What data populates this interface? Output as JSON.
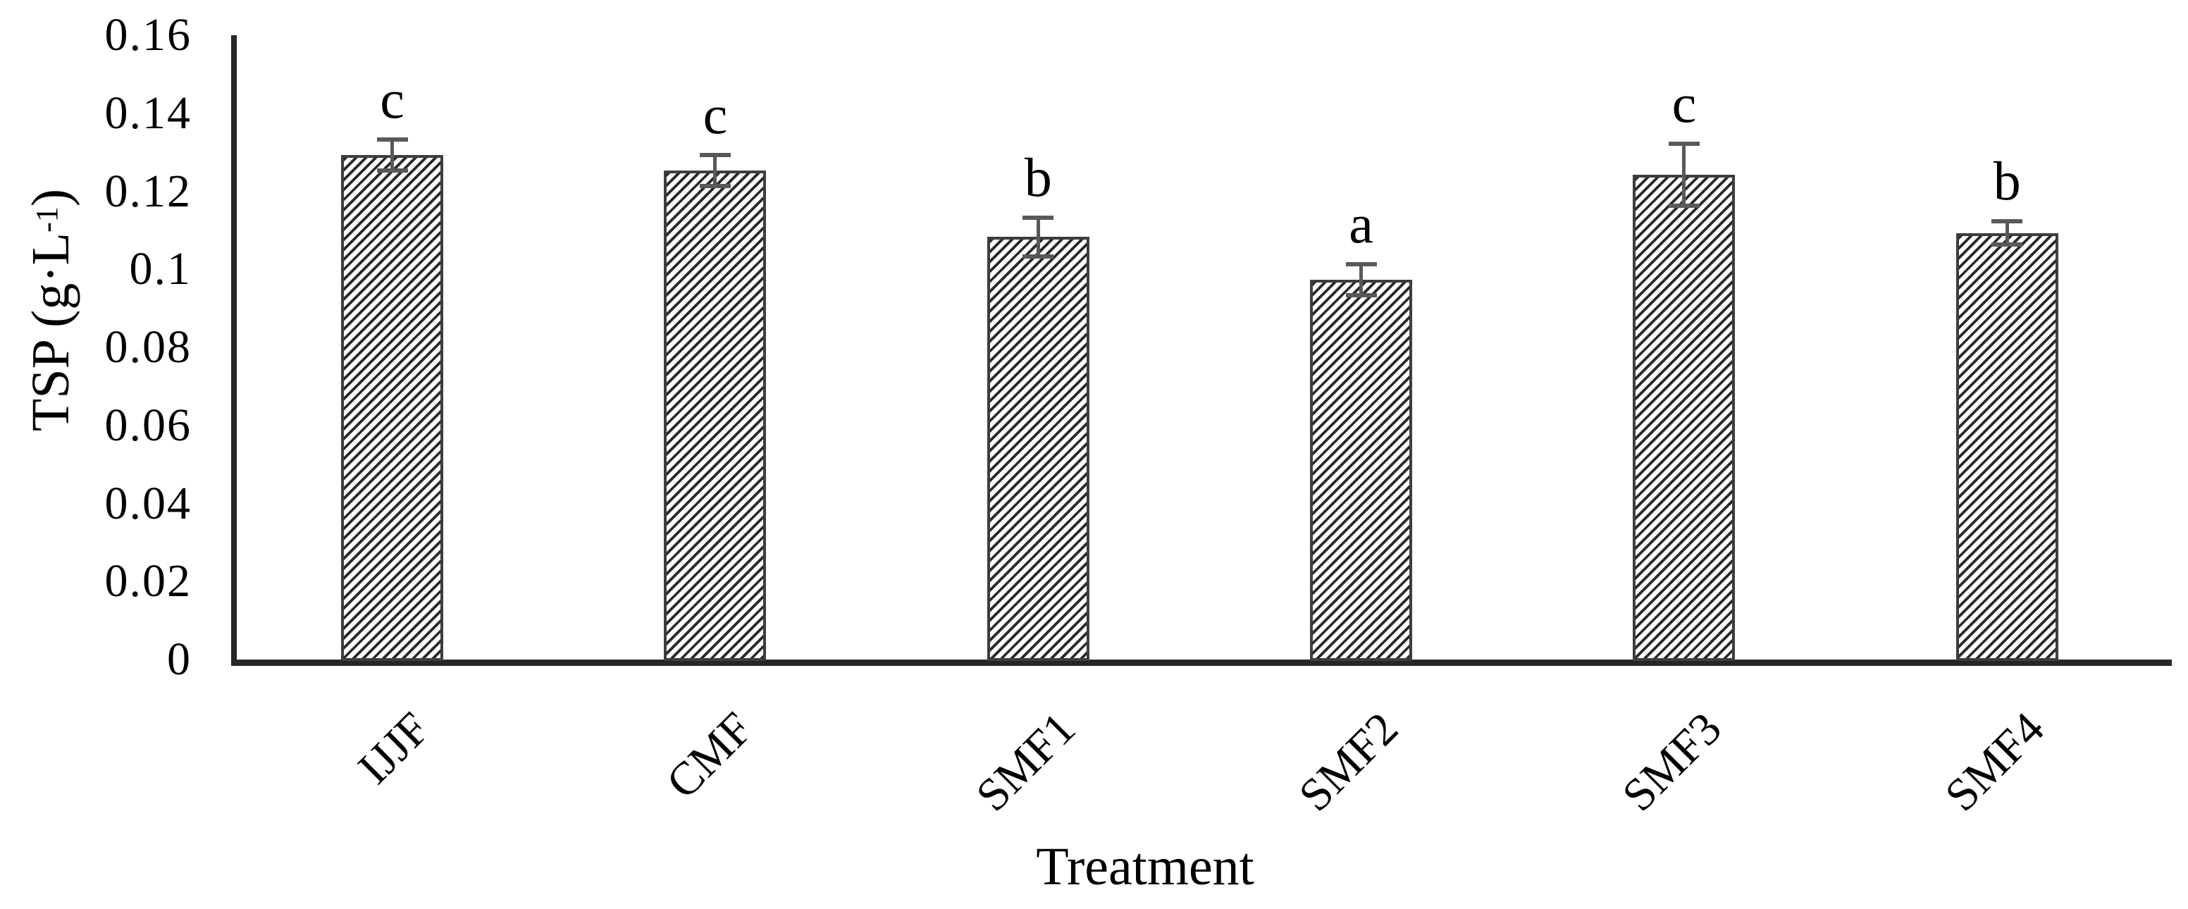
{
  "chart_data": {
    "type": "bar",
    "title": "",
    "xlabel": "Treatment",
    "ylabel": {
      "prefix": "TSP (g·L",
      "sup": "-1",
      "suffix": ")"
    },
    "categories": [
      "IJJF",
      "CMF",
      "SMF1",
      "SMF2",
      "SMF3",
      "SMF4"
    ],
    "values": [
      0.13,
      0.126,
      0.109,
      0.098,
      0.125,
      0.11
    ],
    "error_bars": [
      0.004,
      0.004,
      0.005,
      0.004,
      0.008,
      0.003
    ],
    "sig_letters": [
      "c",
      "c",
      "b",
      "a",
      "c",
      "b"
    ],
    "ylim": [
      0,
      0.16
    ],
    "ytick_step": 0.02,
    "ytick_values": [
      0,
      0.02,
      0.04,
      0.06,
      0.08,
      0.1,
      0.12,
      0.14,
      0.16
    ],
    "ytick_labels": [
      "0",
      "0.02",
      "0.04",
      "0.06",
      "0.08",
      "0.1",
      "0.12",
      "0.14",
      "0.16"
    ],
    "grid": "off",
    "legend": "none",
    "bar_style": {
      "fill": "diagonal-hatch",
      "hatch_color": "#2a2a2a",
      "bar_edge_color": "#3d3d3d",
      "error_bar_color": "#595959",
      "axis_color": "#262626",
      "text_color": "#000000",
      "background": "#ffffff"
    }
  }
}
